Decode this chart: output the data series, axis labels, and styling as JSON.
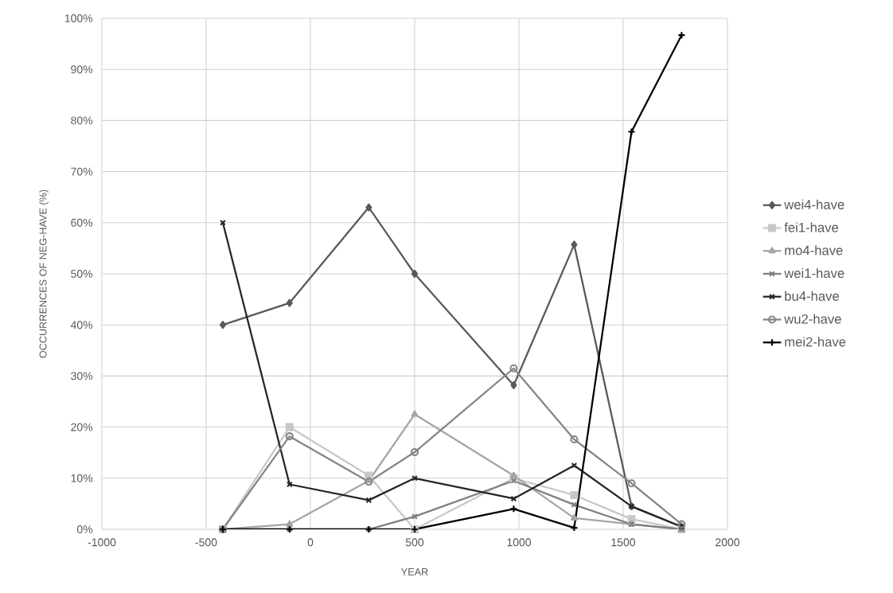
{
  "chart_data": {
    "type": "line",
    "xlabel": "YEAR",
    "ylabel": "OCCURRENCES OF NEG-HAVE (%)",
    "x": [
      -420,
      -100,
      280,
      500,
      975,
      1265,
      1540,
      1780
    ],
    "xlim": [
      -1000,
      2000
    ],
    "xticks": [
      -1000,
      -500,
      0,
      500,
      1000,
      1500,
      2000
    ],
    "ylim": [
      0,
      100
    ],
    "yticks": [
      {
        "value": 0,
        "label": "0%"
      },
      {
        "value": 10,
        "label": "10%"
      },
      {
        "value": 20,
        "label": "20%"
      },
      {
        "value": 30,
        "label": "30%"
      },
      {
        "value": 40,
        "label": "40%"
      },
      {
        "value": 50,
        "label": "50%"
      },
      {
        "value": 60,
        "label": "60%"
      },
      {
        "value": 70,
        "label": "70%"
      },
      {
        "value": 80,
        "label": "80%"
      },
      {
        "value": 90,
        "label": "90%"
      },
      {
        "value": 100,
        "label": "100%"
      }
    ],
    "grid": true,
    "legend": "right",
    "line_style": "solid",
    "series": [
      {
        "name": "wei4-have",
        "color": "#595959",
        "marker": "diamond",
        "values": [
          40,
          44.3,
          63,
          50,
          28.2,
          55.7,
          4.5,
          0.5
        ]
      },
      {
        "name": "fei1-have",
        "color": "#c8c8c8",
        "marker": "square",
        "values": [
          0,
          20,
          10.5,
          0,
          10,
          6.7,
          2,
          0
        ]
      },
      {
        "name": "mo4-have",
        "color": "#a5a5a5",
        "marker": "triangle",
        "values": [
          0,
          1,
          9.5,
          22.5,
          10.5,
          2.2,
          1,
          0
        ]
      },
      {
        "name": "wei1-have",
        "color": "#7f7f7f",
        "marker": "cross",
        "values": [
          0,
          0,
          0,
          2.5,
          9.5,
          4.8,
          1,
          0
        ]
      },
      {
        "name": "bu4-have",
        "color": "#262626",
        "marker": "cross",
        "values": [
          60,
          8.8,
          5.7,
          10,
          6,
          12.5,
          4.5,
          0.5
        ]
      },
      {
        "name": "wu2-have",
        "color": "#858585",
        "marker": "circle",
        "values": [
          0,
          18.2,
          9.3,
          15.1,
          31.5,
          17.6,
          9,
          1
        ]
      },
      {
        "name": "mei2-have",
        "color": "#000000",
        "marker": "plus",
        "values": [
          0,
          0,
          0,
          0,
          4,
          0.3,
          77.8,
          96.7
        ]
      }
    ]
  }
}
